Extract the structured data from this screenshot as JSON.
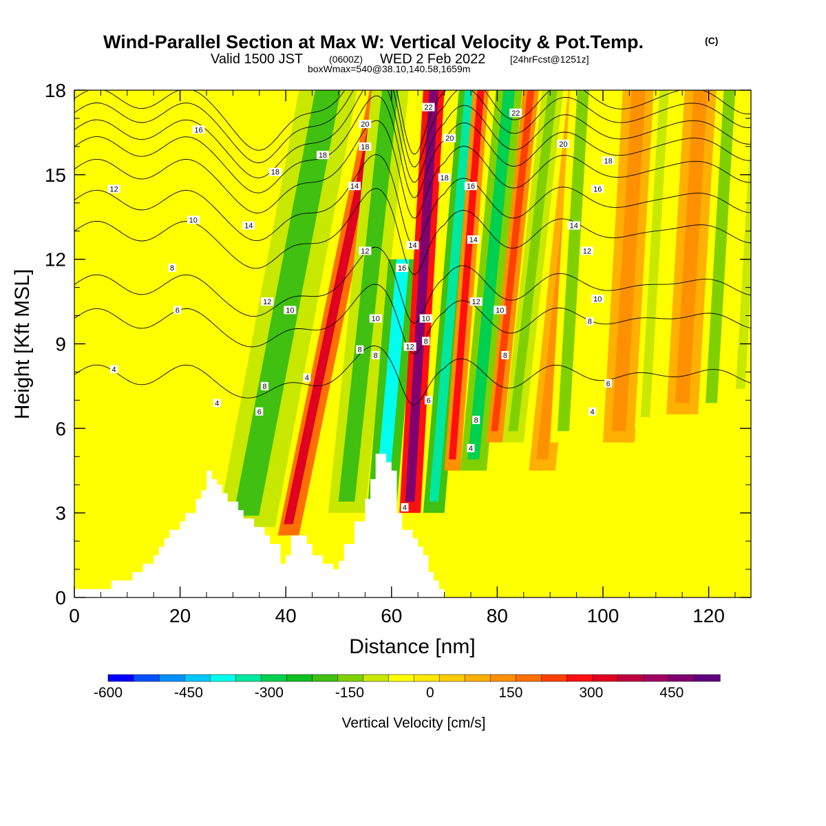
{
  "header": {
    "title": "Wind-Parallel Section at Max W: Vertical Velocity & Pot.Temp.",
    "title_mark": "(C)",
    "valid_prefix": "Valid 1500 JST",
    "valid_utc": "(0600Z)",
    "valid_date": "WED 2 Feb 2022",
    "forecast": "[24hrFcst@1251z]",
    "box_info": "boxWmax=540@38.10,140.58,1659m"
  },
  "chart_data": {
    "type": "heatmap",
    "xlabel": "Distance [nm]",
    "ylabel": "Height [Kft MSL]",
    "xlim": [
      0,
      128
    ],
    "ylim": [
      0,
      18
    ],
    "x_ticks": [
      "0",
      "20",
      "40",
      "60",
      "80",
      "100",
      "120"
    ],
    "y_ticks": [
      "0",
      "3",
      "6",
      "9",
      "12",
      "15",
      "18"
    ],
    "colorbar": {
      "label": "Vertical Velocity [cm/s]",
      "min": -600,
      "max": 540,
      "tick_labels": [
        "-600",
        "-450",
        "-300",
        "-150",
        "0",
        "150",
        "300",
        "450"
      ],
      "colors": [
        "#0000ff",
        "#0050ff",
        "#0090ff",
        "#00c8ff",
        "#00ffee",
        "#00e8a0",
        "#00d050",
        "#10c020",
        "#40c010",
        "#80d000",
        "#c8e800",
        "#ffff00",
        "#ffe800",
        "#ffcc00",
        "#ffb000",
        "#ff9000",
        "#ff7000",
        "#ff4000",
        "#ff1010",
        "#e00020",
        "#c00040",
        "#a00060",
        "#800070",
        "#600080"
      ]
    },
    "terrain": [
      [
        0,
        0.3
      ],
      [
        7,
        0.3
      ],
      [
        7,
        0.6
      ],
      [
        11,
        0.6
      ],
      [
        11,
        0.9
      ],
      [
        13,
        0.9
      ],
      [
        13,
        1.2
      ],
      [
        15,
        1.2
      ],
      [
        15,
        1.5
      ],
      [
        16,
        1.5
      ],
      [
        16,
        1.8
      ],
      [
        17,
        1.8
      ],
      [
        17,
        2.1
      ],
      [
        18,
        2.1
      ],
      [
        18,
        2.4
      ],
      [
        20,
        2.4
      ],
      [
        20,
        2.7
      ],
      [
        21,
        2.7
      ],
      [
        21,
        3.0
      ],
      [
        23,
        3.0
      ],
      [
        23,
        3.5
      ],
      [
        24,
        3.5
      ],
      [
        24,
        3.8
      ],
      [
        25,
        3.8
      ],
      [
        25,
        4.5
      ],
      [
        26,
        4.5
      ],
      [
        26,
        4.2
      ],
      [
        27,
        4.2
      ],
      [
        27,
        4.0
      ],
      [
        28,
        4.0
      ],
      [
        28,
        3.7
      ],
      [
        29,
        3.7
      ],
      [
        29,
        3.4
      ],
      [
        31,
        3.4
      ],
      [
        31,
        3.1
      ],
      [
        32,
        3.1
      ],
      [
        32,
        2.8
      ],
      [
        34,
        2.8
      ],
      [
        34,
        2.5
      ],
      [
        36,
        2.5
      ],
      [
        36,
        2.2
      ],
      [
        37,
        2.2
      ],
      [
        37,
        1.9
      ],
      [
        39,
        1.9
      ],
      [
        39,
        1.2
      ],
      [
        40,
        1.2
      ],
      [
        40,
        1.5
      ],
      [
        41,
        1.5
      ],
      [
        41,
        2.2
      ],
      [
        44,
        2.2
      ],
      [
        44,
        1.9
      ],
      [
        45,
        1.9
      ],
      [
        45,
        1.5
      ],
      [
        47,
        1.5
      ],
      [
        47,
        1.2
      ],
      [
        49,
        1.2
      ],
      [
        49,
        1.0
      ],
      [
        50,
        1.0
      ],
      [
        50,
        1.3
      ],
      [
        51,
        1.3
      ],
      [
        51,
        1.9
      ],
      [
        53,
        1.9
      ],
      [
        53,
        2.7
      ],
      [
        55,
        2.7
      ],
      [
        55,
        3.5
      ],
      [
        56,
        3.5
      ],
      [
        56,
        4.2
      ],
      [
        57,
        4.2
      ],
      [
        57,
        5.1
      ],
      [
        59,
        5.1
      ],
      [
        59,
        4.8
      ],
      [
        60,
        4.8
      ],
      [
        60,
        4.5
      ],
      [
        61,
        4.5
      ],
      [
        61,
        3.0
      ],
      [
        62,
        3.0
      ],
      [
        62,
        2.4
      ],
      [
        64,
        2.4
      ],
      [
        64,
        2.1
      ],
      [
        65,
        2.1
      ],
      [
        65,
        1.8
      ],
      [
        66,
        1.8
      ],
      [
        66,
        1.5
      ],
      [
        67,
        1.5
      ],
      [
        67,
        0.9
      ],
      [
        68,
        0.9
      ],
      [
        68,
        0.6
      ],
      [
        69,
        0.6
      ],
      [
        69,
        0.3
      ],
      [
        70,
        0.3
      ],
      [
        70,
        0
      ]
    ],
    "w_bands": [
      {
        "x0": 27,
        "x1": 38,
        "slope": -1.0,
        "top": 18,
        "bottom": 2.5,
        "value": -200
      },
      {
        "x0": 38.5,
        "x1": 42.5,
        "slope": -1.1,
        "top": 18,
        "bottom": 2.2,
        "value": 330
      },
      {
        "x0": 48,
        "x1": 55,
        "slope": -0.55,
        "top": 18,
        "bottom": 3,
        "value": -180
      },
      {
        "x0": 55.5,
        "x1": 61,
        "slope": -0.45,
        "top": 12,
        "bottom": 3.3,
        "value": -380
      },
      {
        "x0": 61.5,
        "x1": 65.5,
        "slope": -0.3,
        "top": 18,
        "bottom": 3.0,
        "value": 470
      },
      {
        "x0": 66,
        "x1": 70,
        "slope": -0.45,
        "top": 18,
        "bottom": 3.0,
        "value": -330
      },
      {
        "x0": 70,
        "x1": 73,
        "slope": -0.4,
        "top": 18,
        "bottom": 4.5,
        "value": 280
      },
      {
        "x0": 73,
        "x1": 78,
        "slope": -0.5,
        "top": 18,
        "bottom": 4.5,
        "value": -280
      },
      {
        "x0": 78,
        "x1": 81,
        "slope": -0.55,
        "top": 18,
        "bottom": 5.5,
        "value": 250
      },
      {
        "x0": 81,
        "x1": 85,
        "slope": -0.6,
        "top": 18,
        "bottom": 5.5,
        "value": -170
      },
      {
        "x0": 86,
        "x1": 91,
        "slope": -0.55,
        "top": 18,
        "bottom": 4.5,
        "value": 150
      },
      {
        "x0": 90,
        "x1": 95,
        "slope": -0.3,
        "top": 18,
        "bottom": 5.5,
        "value": -130
      },
      {
        "x0": 100,
        "x1": 106,
        "slope": -0.3,
        "top": 18,
        "bottom": 5.5,
        "value": 120
      },
      {
        "x0": 106,
        "x1": 110,
        "slope": -0.3,
        "top": 18,
        "bottom": 6.0,
        "value": -110
      },
      {
        "x0": 112,
        "x1": 118,
        "slope": -0.3,
        "top": 18,
        "bottom": 6.5,
        "value": 130
      },
      {
        "x0": 118,
        "x1": 123,
        "slope": -0.3,
        "top": 18,
        "bottom": 6.5,
        "value": -130
      },
      {
        "x0": 124,
        "x1": 128,
        "slope": -0.3,
        "top": 18,
        "bottom": 7.0,
        "value": -110
      }
    ],
    "theta_contours": [
      {
        "value": 4,
        "base": 7.9
      },
      {
        "value": 6,
        "base": 9.9
      },
      {
        "value": 8,
        "base": 11.1
      },
      {
        "value": 10,
        "base": 13.0
      },
      {
        "value": 12,
        "base": 14.1
      },
      {
        "value": 14,
        "base": 15.2
      },
      {
        "value": 16,
        "base": 16.0
      },
      {
        "value": 18,
        "base": 16.6
      },
      {
        "value": 20,
        "base": 17.2
      },
      {
        "value": 22,
        "base": 17.7
      }
    ],
    "contour_labels": [
      {
        "text": "4",
        "x": 7.5,
        "y": 8.1
      },
      {
        "text": "6",
        "x": 19.5,
        "y": 10.2
      },
      {
        "text": "8",
        "x": 18.5,
        "y": 11.7
      },
      {
        "text": "10",
        "x": 22.5,
        "y": 13.4
      },
      {
        "text": "12",
        "x": 7.5,
        "y": 14.5
      },
      {
        "text": "14",
        "x": 33,
        "y": 13.2
      },
      {
        "text": "16",
        "x": 23.5,
        "y": 16.6
      },
      {
        "text": "18",
        "x": 38,
        "y": 15.1
      },
      {
        "text": "18",
        "x": 47,
        "y": 15.7
      },
      {
        "text": "12",
        "x": 36.5,
        "y": 10.5
      },
      {
        "text": "10",
        "x": 40.8,
        "y": 10.2
      },
      {
        "text": "8",
        "x": 36,
        "y": 7.5
      },
      {
        "text": "6",
        "x": 35,
        "y": 6.6
      },
      {
        "text": "4",
        "x": 27,
        "y": 6.9
      },
      {
        "text": "4",
        "x": 44,
        "y": 7.8
      },
      {
        "text": "20",
        "x": 55,
        "y": 16.8
      },
      {
        "text": "18",
        "x": 55,
        "y": 16.0
      },
      {
        "text": "14",
        "x": 53,
        "y": 14.6
      },
      {
        "text": "12",
        "x": 55,
        "y": 12.3
      },
      {
        "text": "10",
        "x": 57,
        "y": 9.9
      },
      {
        "text": "8",
        "x": 54,
        "y": 8.8
      },
      {
        "text": "8",
        "x": 57,
        "y": 8.6
      },
      {
        "text": "16",
        "x": 62,
        "y": 11.7
      },
      {
        "text": "12",
        "x": 63.5,
        "y": 8.9
      },
      {
        "text": "14",
        "x": 64,
        "y": 12.5
      },
      {
        "text": "22",
        "x": 67,
        "y": 17.4
      },
      {
        "text": "20",
        "x": 71,
        "y": 16.3
      },
      {
        "text": "18",
        "x": 70,
        "y": 14.9
      },
      {
        "text": "16",
        "x": 75,
        "y": 14.6
      },
      {
        "text": "14",
        "x": 75.5,
        "y": 12.7
      },
      {
        "text": "12",
        "x": 76,
        "y": 10.5
      },
      {
        "text": "10",
        "x": 66.5,
        "y": 9.9
      },
      {
        "text": "8",
        "x": 66.5,
        "y": 9.1
      },
      {
        "text": "6",
        "x": 67,
        "y": 7.0
      },
      {
        "text": "8",
        "x": 76,
        "y": 6.3
      },
      {
        "text": "4",
        "x": 75,
        "y": 5.3
      },
      {
        "text": "4",
        "x": 62.5,
        "y": 3.2
      },
      {
        "text": "10",
        "x": 80.5,
        "y": 10.2
      },
      {
        "text": "8",
        "x": 81.5,
        "y": 8.6
      },
      {
        "text": "22",
        "x": 83.5,
        "y": 17.2
      },
      {
        "text": "20",
        "x": 92.5,
        "y": 16.1
      },
      {
        "text": "18",
        "x": 101,
        "y": 15.5
      },
      {
        "text": "16",
        "x": 99,
        "y": 14.5
      },
      {
        "text": "14",
        "x": 94.5,
        "y": 13.2
      },
      {
        "text": "12",
        "x": 97,
        "y": 12.3
      },
      {
        "text": "10",
        "x": 99,
        "y": 10.6
      },
      {
        "text": "8",
        "x": 97.5,
        "y": 9.8
      },
      {
        "text": "6",
        "x": 101,
        "y": 7.6
      },
      {
        "text": "4",
        "x": 98,
        "y": 6.6
      }
    ]
  }
}
